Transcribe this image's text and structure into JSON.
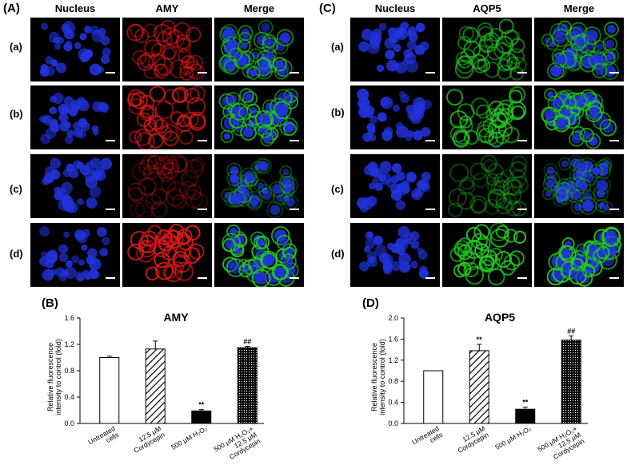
{
  "panels": {
    "A": {
      "label": "(A)",
      "columns": [
        "Nucleus",
        "AMY",
        "Merge"
      ],
      "rows": [
        "(a)",
        "(b)",
        "(c)",
        "(d)"
      ]
    },
    "C": {
      "label": "(C)",
      "columns": [
        "Nucleus",
        "AQP5",
        "Merge"
      ],
      "rows": [
        "(a)",
        "(b)",
        "(c)",
        "(d)"
      ]
    },
    "B": {
      "label": "(B)"
    },
    "D": {
      "label": "(D)"
    }
  },
  "colors": {
    "nucleus": "#2233dd",
    "amy": "#e01818",
    "aqp5": "#22cc22",
    "bar_edge": "#000000"
  },
  "image_intensity": {
    "amy": [
      0.55,
      0.8,
      0.12,
      1.0
    ],
    "aqp5": [
      0.6,
      0.8,
      0.15,
      1.0
    ]
  },
  "chart_data": [
    {
      "type": "bar",
      "title": "AMY",
      "ylabel": "Relative fluorescence intensity to control (fold)",
      "ylim": [
        0,
        1.6
      ],
      "yticks": [
        "0.0",
        "0.4",
        "0.8",
        "1.2",
        "1.6"
      ],
      "categories": [
        "Untreated cells",
        "12.5 μM Cordycepin",
        "500 μM H₂O₂",
        "500 μM H₂O₂+ 12.5 μM Cordycepin"
      ],
      "values": [
        1.0,
        1.13,
        0.19,
        1.15
      ],
      "errors": [
        0.02,
        0.12,
        0.02,
        0.02
      ],
      "annotations": [
        "",
        "",
        "**",
        "##"
      ],
      "fills": [
        "white",
        "diagonal",
        "black",
        "dotted"
      ]
    },
    {
      "type": "bar",
      "title": "AQP5",
      "ylabel": "Relative fluorescence intensity to control (fold)",
      "ylim": [
        0,
        2.0
      ],
      "yticks": [
        "0.0",
        "0.4",
        "0.8",
        "1.2",
        "1.6",
        "2.0"
      ],
      "categories": [
        "Untreated cells",
        "12.5 μM Cordycepin",
        "500 μM H₂O₂",
        "500 μM H₂O₂+ 12.5 μM Cordycepin"
      ],
      "values": [
        1.0,
        1.38,
        0.27,
        1.58
      ],
      "errors": [
        0.0,
        0.12,
        0.04,
        0.08
      ],
      "annotations": [
        "",
        "**",
        "**",
        "##"
      ],
      "fills": [
        "white",
        "diagonal",
        "black",
        "dotted"
      ]
    }
  ]
}
